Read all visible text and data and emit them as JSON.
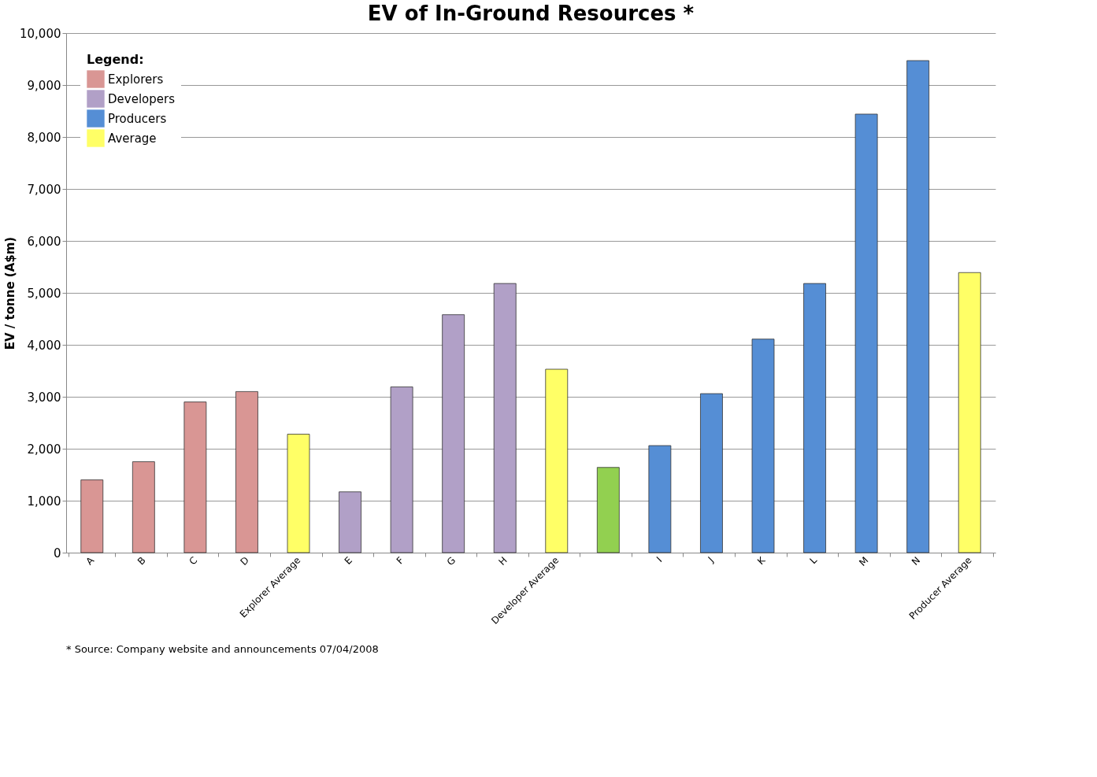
{
  "chart_data": {
    "type": "bar",
    "title": "EV of In-Ground Resources *",
    "ylabel": "EV / tonne (A$m)",
    "categories": [
      "A",
      "B",
      "C",
      "D",
      "Explorer Average",
      "E",
      "F",
      "G",
      "H",
      "Developer Average",
      null,
      "I",
      "J",
      "K",
      "L",
      "M",
      "N",
      "Producer Average"
    ],
    "series": [
      {
        "name": "Explorers",
        "color": "#d99694",
        "values": [
          1400,
          1750,
          2900,
          3100,
          null,
          null,
          null,
          null,
          null,
          null,
          null,
          null,
          null,
          null,
          null,
          null,
          null,
          null
        ]
      },
      {
        "name": "Developers",
        "color": "#b1a0c7",
        "values": [
          null,
          null,
          null,
          null,
          null,
          1170,
          3190,
          4580,
          5180,
          null,
          null,
          null,
          null,
          null,
          null,
          null,
          null,
          null
        ]
      },
      {
        "name": "Producers",
        "color": "#558ed5",
        "values": [
          null,
          null,
          null,
          null,
          null,
          null,
          null,
          null,
          null,
          null,
          null,
          2060,
          3060,
          4110,
          5180,
          8440,
          9470,
          null
        ]
      },
      {
        "name": "Average",
        "color": "#ffff66",
        "values": [
          null,
          null,
          null,
          null,
          2280,
          null,
          null,
          null,
          null,
          3530,
          null,
          null,
          null,
          null,
          null,
          null,
          null,
          5390
        ]
      },
      {
        "color": "#92d050",
        "values": [
          null,
          null,
          null,
          null,
          null,
          null,
          null,
          null,
          null,
          null,
          1640,
          null,
          null,
          null,
          null,
          null,
          null,
          null
        ]
      }
    ],
    "legend_title": "Legend:",
    "legend": "top left",
    "ylim": [
      0,
      10000
    ],
    "yticks": [
      0,
      {
        "value": 1000,
        "label": "1,000"
      },
      {
        "value": 2000,
        "label": "2,000"
      },
      {
        "value": 3000,
        "label": "3,000"
      },
      {
        "value": 4000,
        "label": "4,000"
      },
      {
        "value": 5000,
        "label": "5,000"
      },
      {
        "value": 6000,
        "label": "6,000"
      },
      {
        "value": 7000,
        "label": "7,000"
      },
      {
        "value": 8000,
        "label": "8,000"
      },
      {
        "value": 9000,
        "label": "9,000"
      },
      {
        "value": 10000,
        "label": "10,000"
      }
    ],
    "grid": "y",
    "annotations": [
      "* Source: Company website and announcements 07/04/2008"
    ]
  }
}
